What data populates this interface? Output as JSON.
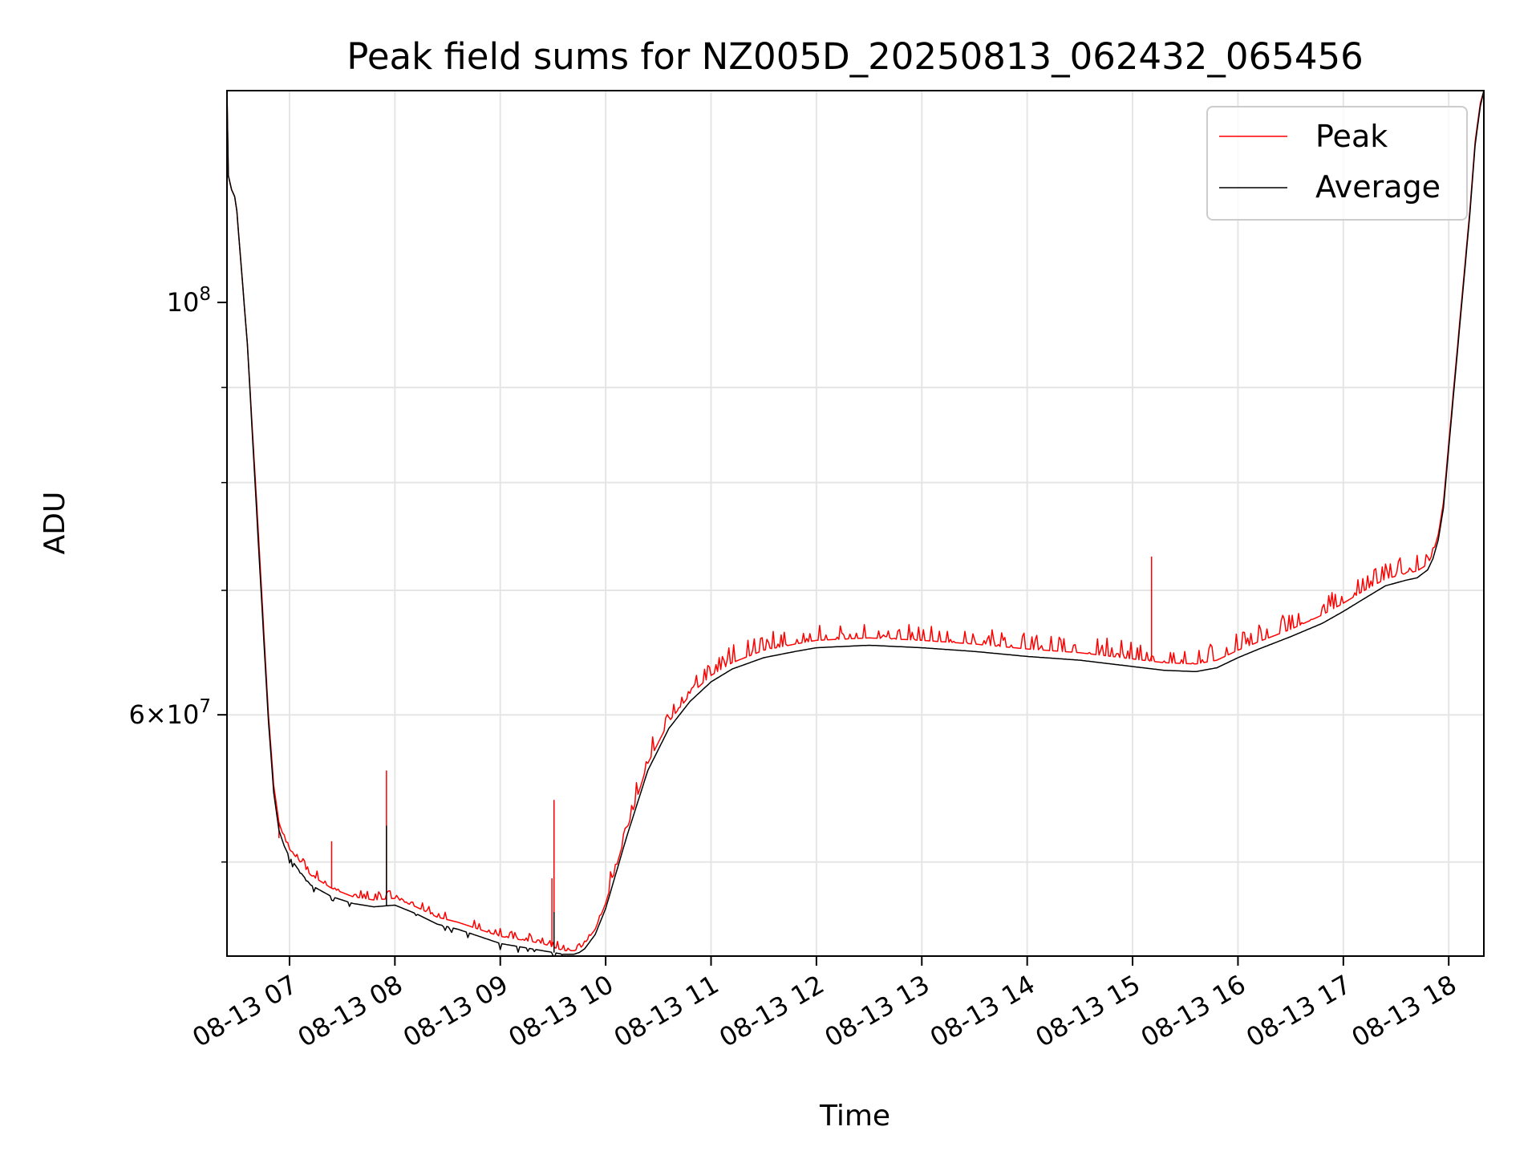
{
  "chart_data": {
    "type": "line",
    "title": "Peak field sums for NZ005D_20250813_062432_065456",
    "xlabel": "Time",
    "ylabel": "ADU",
    "y_scale": "log",
    "grid": true,
    "legend_position": "top-right",
    "x_tick_labels": [
      "08-13 07",
      "08-13 08",
      "08-13 09",
      "08-13 10",
      "08-13 11",
      "08-13 12",
      "08-13 13",
      "08-13 14",
      "08-13 15",
      "08-13 16",
      "08-13 17",
      "08-13 18"
    ],
    "x_tick_hours": [
      7,
      8,
      9,
      10,
      11,
      12,
      13,
      14,
      15,
      16,
      17,
      18
    ],
    "xlim_hours": [
      6.4067,
      18.3333
    ],
    "ylim": [
      44500000,
      130000000
    ],
    "y_major_ticks": [
      {
        "value": 100000000,
        "label": "10^8"
      },
      {
        "value": 60000000,
        "label": "6×10^7"
      }
    ],
    "y_minor_grid": [
      50000000,
      60000000,
      70000000,
      80000000,
      90000000
    ],
    "series": [
      {
        "name": "Peak",
        "color": "#ff0000",
        "time_hours": [
          6.4067,
          6.42,
          6.45,
          6.48,
          6.5,
          6.6,
          6.7,
          6.8,
          6.85,
          6.9,
          6.95,
          7.0,
          7.1,
          7.2,
          7.4,
          7.6,
          7.8,
          8.0,
          8.2,
          8.4,
          8.6,
          8.8,
          9.0,
          9.2,
          9.4,
          9.5,
          9.6,
          9.7,
          9.75,
          9.8,
          9.9,
          10.0,
          10.2,
          10.4,
          10.6,
          10.8,
          11.0,
          11.2,
          11.5,
          11.8,
          12.0,
          12.5,
          13.0,
          13.5,
          14.0,
          14.5,
          15.0,
          15.3,
          15.6,
          15.8,
          16.0,
          16.2,
          16.5,
          16.8,
          17.0,
          17.2,
          17.4,
          17.6,
          17.7,
          17.8,
          17.85,
          17.9,
          17.95,
          18.0,
          18.1,
          18.2,
          18.25,
          18.3,
          18.3333
        ],
        "values": [
          130000000,
          117000000,
          115000000,
          114000000,
          112000000,
          95000000,
          76000000,
          60000000,
          55000000,
          52500000,
          51500000,
          50800000,
          50000000,
          49200000,
          48400000,
          47900000,
          47700000,
          47800000,
          47300000,
          46700000,
          46400000,
          46000000,
          45600000,
          45400000,
          45200000,
          45000000,
          44800000,
          44800000,
          44900000,
          45200000,
          46000000,
          47500000,
          52000000,
          56500000,
          59500000,
          61500000,
          63000000,
          64000000,
          65000000,
          65500000,
          65800000,
          66000000,
          65800000,
          65500000,
          65100000,
          64800000,
          64300000,
          64000000,
          63900000,
          64200000,
          65000000,
          65700000,
          66700000,
          67900000,
          68900000,
          70000000,
          71000000,
          71500000,
          71700000,
          72300000,
          73300000,
          75000000,
          78000000,
          84000000,
          97000000,
          112000000,
          122000000,
          128000000,
          130000000
        ],
        "spikes": [
          {
            "time_hours": 6.9,
            "value": 51500000
          },
          {
            "time_hours": 7.4,
            "value": 51300000
          },
          {
            "time_hours": 7.92,
            "value": 56000000
          },
          {
            "time_hours": 9.49,
            "value": 49000000
          },
          {
            "time_hours": 9.51,
            "value": 54000000
          },
          {
            "time_hours": 15.18,
            "value": 73000000
          }
        ]
      },
      {
        "name": "Average",
        "color": "#000000",
        "time_hours": [
          6.4067,
          6.42,
          6.45,
          6.48,
          6.5,
          6.6,
          6.7,
          6.8,
          6.85,
          6.9,
          6.95,
          7.0,
          7.1,
          7.2,
          7.4,
          7.6,
          7.8,
          8.0,
          8.2,
          8.4,
          8.6,
          8.8,
          9.0,
          9.2,
          9.4,
          9.5,
          9.6,
          9.7,
          9.75,
          9.8,
          9.9,
          10.0,
          10.2,
          10.4,
          10.6,
          10.8,
          11.0,
          11.2,
          11.5,
          11.8,
          12.0,
          12.5,
          13.0,
          13.5,
          14.0,
          14.5,
          15.0,
          15.3,
          15.6,
          15.8,
          16.0,
          16.2,
          16.5,
          16.8,
          17.0,
          17.2,
          17.4,
          17.6,
          17.7,
          17.8,
          17.85,
          17.9,
          17.95,
          18.0,
          18.1,
          18.2,
          18.25,
          18.3,
          18.3333
        ],
        "values": [
          130000000,
          117000000,
          115000000,
          114000000,
          112000000,
          95000000,
          75000000,
          59500000,
          54500000,
          52000000,
          51000000,
          50300000,
          49400000,
          48600000,
          47900000,
          47500000,
          47300000,
          47400000,
          46900000,
          46300000,
          46000000,
          45600000,
          45200000,
          45000000,
          44800000,
          44700000,
          44600000,
          44600000,
          44700000,
          44900000,
          45700000,
          47200000,
          51600000,
          56000000,
          59000000,
          61000000,
          62500000,
          63500000,
          64400000,
          64900000,
          65200000,
          65400000,
          65200000,
          64900000,
          64500000,
          64200000,
          63700000,
          63400000,
          63300000,
          63600000,
          64400000,
          65100000,
          66100000,
          67200000,
          68200000,
          69300000,
          70400000,
          70900000,
          71100000,
          71800000,
          72800000,
          74500000,
          77500000,
          83500000,
          96500000,
          111500000,
          121500000,
          127500000,
          130000000
        ],
        "spikes": [
          {
            "time_hours": 7.92,
            "value": 52300000
          },
          {
            "time_hours": 9.51,
            "value": 47000000
          }
        ]
      }
    ]
  }
}
